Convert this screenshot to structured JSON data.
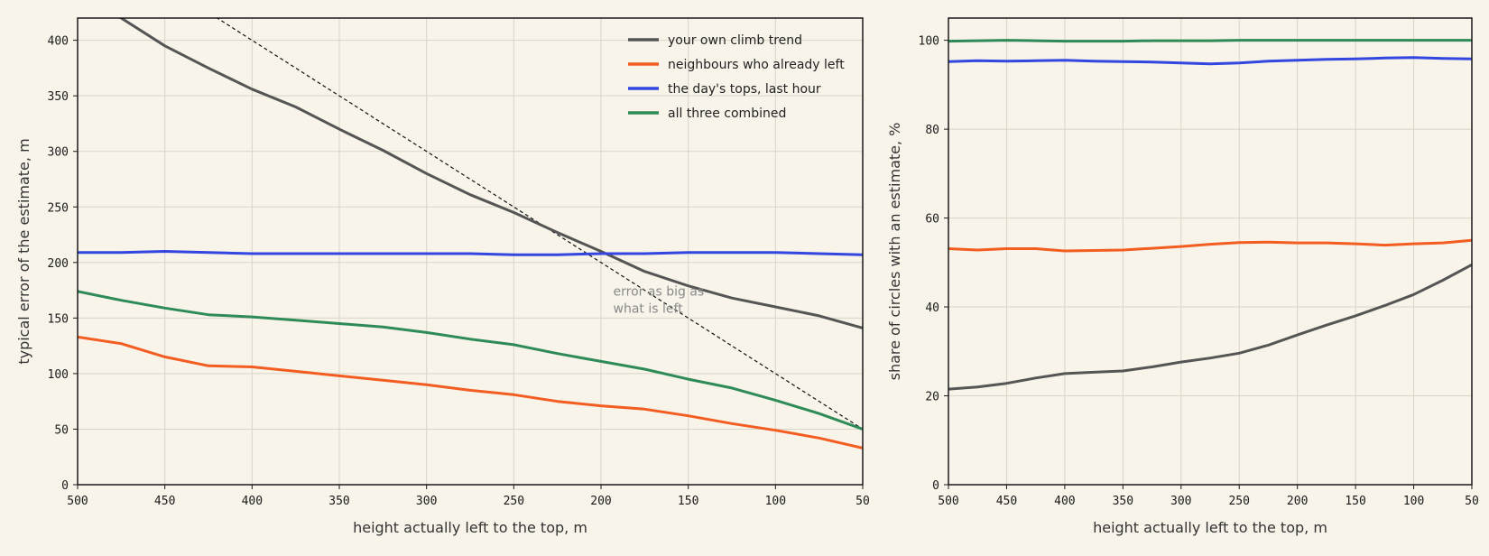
{
  "colors": {
    "background": "#f8f4ea",
    "own": "#555555",
    "neighbours": "#f45d22",
    "tops": "#3346e0",
    "combined": "#2e8b57",
    "reference": "#111111",
    "annotation": "#8a8a8a"
  },
  "chart_data": [
    {
      "type": "line",
      "xlabel": "height actually left to the top, m",
      "ylabel": "typical error of the estimate, m",
      "xlim": [
        500,
        50
      ],
      "ylim": [
        0,
        420
      ],
      "x_reversed": true,
      "grid": true,
      "legend_position": "top-right",
      "x_ticks": [
        500,
        450,
        400,
        350,
        300,
        250,
        200,
        150,
        100,
        50
      ],
      "y_ticks": [
        0,
        50,
        100,
        150,
        200,
        250,
        300,
        350,
        400
      ],
      "x": [
        500,
        475,
        450,
        425,
        400,
        375,
        350,
        325,
        300,
        275,
        250,
        225,
        200,
        175,
        150,
        125,
        100,
        75,
        50
      ],
      "series": [
        {
          "name": "your own climb trend",
          "key": "own",
          "values": [
            435,
            420,
            395,
            375,
            356,
            340,
            320,
            301,
            280,
            261,
            245,
            227,
            210,
            192,
            179,
            168,
            160,
            152,
            141
          ]
        },
        {
          "name": "neighbours who already left",
          "key": "neighbours",
          "values": [
            133,
            127,
            115,
            107,
            106,
            102,
            98,
            94,
            90,
            85,
            81,
            75,
            71,
            68,
            62,
            55,
            49,
            42,
            33
          ]
        },
        {
          "name": "the day's tops, last hour",
          "key": "tops",
          "values": [
            209,
            209,
            210,
            209,
            208,
            208,
            208,
            208,
            208,
            208,
            207,
            207,
            208,
            208,
            209,
            209,
            209,
            208,
            207
          ]
        },
        {
          "name": "all three combined",
          "key": "combined",
          "values": [
            174,
            166,
            159,
            153,
            151,
            148,
            145,
            142,
            137,
            131,
            126,
            118,
            111,
            104,
            95,
            87,
            76,
            64,
            50
          ]
        }
      ],
      "reference_line": {
        "x": [
          500,
          50
        ],
        "y": [
          500,
          50
        ]
      },
      "annotation": {
        "lines": [
          "error as big as",
          "what is left"
        ],
        "x": 193,
        "y": 170
      }
    },
    {
      "type": "line",
      "xlabel": "height actually left to the top, m",
      "ylabel": "share of circles with an estimate, %",
      "xlim": [
        500,
        50
      ],
      "ylim": [
        0,
        105
      ],
      "x_reversed": true,
      "grid": true,
      "x_ticks": [
        500,
        450,
        400,
        350,
        300,
        250,
        200,
        150,
        100,
        50
      ],
      "y_ticks": [
        0,
        20,
        40,
        60,
        80,
        100
      ],
      "x": [
        500,
        475,
        450,
        425,
        400,
        375,
        350,
        325,
        300,
        275,
        250,
        225,
        200,
        175,
        150,
        125,
        100,
        75,
        50
      ],
      "series": [
        {
          "key": "own",
          "values": [
            21.5,
            22,
            22.8,
            24,
            25,
            25.3,
            25.6,
            26.5,
            27.6,
            28.5,
            29.6,
            31.4,
            33.7,
            35.9,
            38,
            40.3,
            42.8,
            46,
            49.5
          ]
        },
        {
          "key": "neighbours",
          "values": [
            53.1,
            52.8,
            53.1,
            53.1,
            52.6,
            52.7,
            52.8,
            53.2,
            53.6,
            54.1,
            54.5,
            54.6,
            54.4,
            54.4,
            54.2,
            53.9,
            54.2,
            54.4,
            55
          ]
        },
        {
          "key": "tops",
          "values": [
            95.2,
            95.4,
            95.3,
            95.4,
            95.5,
            95.3,
            95.2,
            95.1,
            94.9,
            94.7,
            94.9,
            95.3,
            95.5,
            95.7,
            95.8,
            96,
            96.1,
            95.9,
            95.8
          ]
        },
        {
          "key": "combined",
          "values": [
            99.8,
            99.9,
            100,
            99.9,
            99.8,
            99.8,
            99.8,
            99.9,
            99.9,
            99.9,
            100,
            100,
            100,
            100,
            100,
            100,
            100,
            100,
            100
          ]
        }
      ]
    }
  ]
}
